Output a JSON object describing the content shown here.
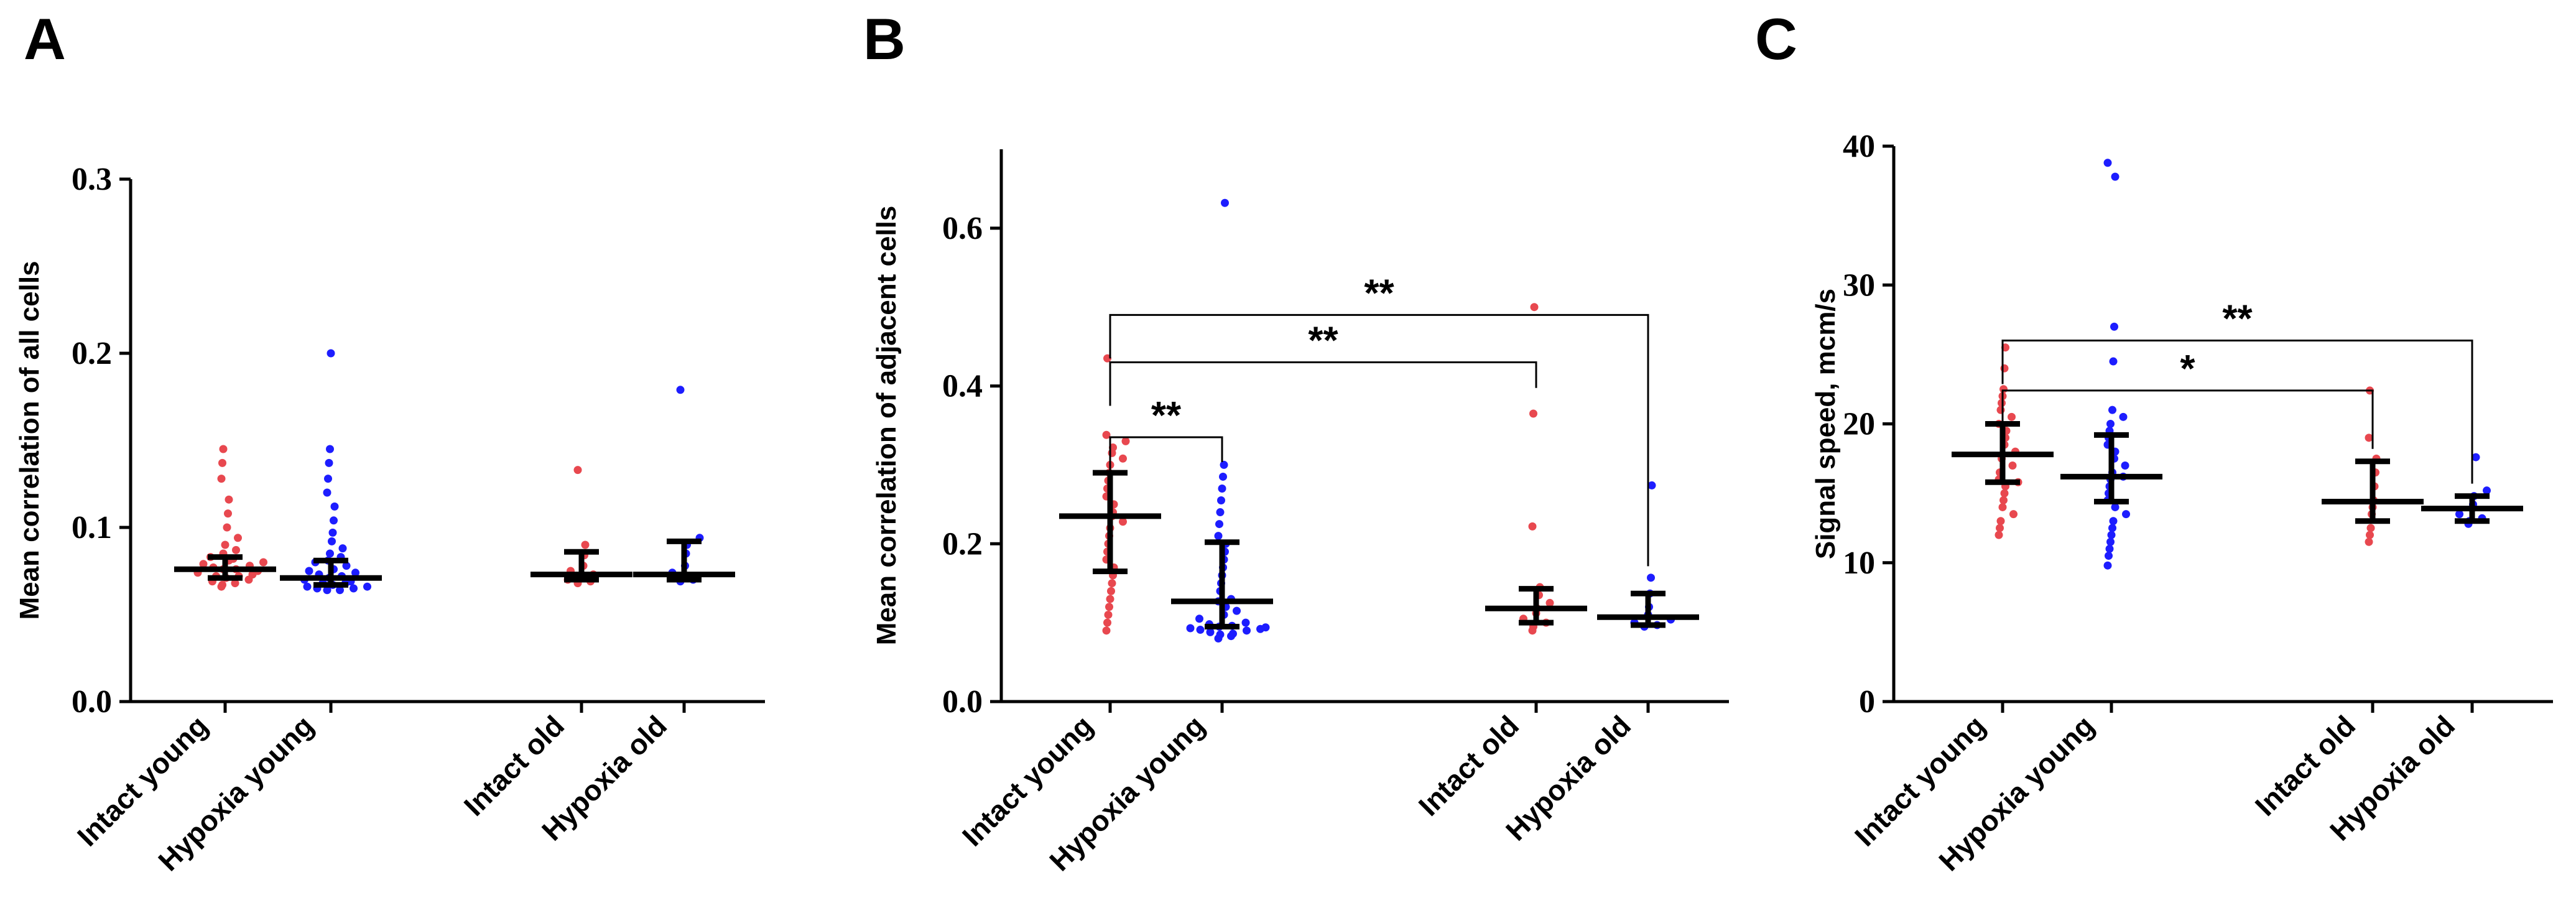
{
  "figure": {
    "colors": {
      "intact": "#e8484f",
      "hypoxia": "#1d1dff",
      "axis": "#000000"
    }
  },
  "chart_data": [
    {
      "panel": "A",
      "type": "scatter",
      "ylabel": "Mean correlation of all cells",
      "ylim": [
        0,
        0.3
      ],
      "yticks": [
        0.0,
        0.1,
        0.2,
        0.3
      ],
      "ytick_labels": [
        "0.0",
        "0.1",
        "0.2",
        "0.3"
      ],
      "categories": [
        "Intact young",
        "Hypoxia young",
        "Intact old",
        "Hypoxia old"
      ],
      "series": [
        {
          "name": "Intact young",
          "color": "intact",
          "median": 0.076,
          "q1": 0.071,
          "q3": 0.083,
          "values": [
            0.145,
            0.137,
            0.128,
            0.116,
            0.108,
            0.1,
            0.094,
            0.09,
            0.087,
            0.085,
            0.083,
            0.082,
            0.081,
            0.08,
            0.079,
            0.078,
            0.077,
            0.076,
            0.076,
            0.075,
            0.074,
            0.073,
            0.072,
            0.072,
            0.071,
            0.07,
            0.069,
            0.068,
            0.067,
            0.066
          ]
        },
        {
          "name": "Hypoxia young",
          "color": "hypoxia",
          "median": 0.071,
          "q1": 0.067,
          "q3": 0.081,
          "values": [
            0.2,
            0.145,
            0.137,
            0.128,
            0.12,
            0.112,
            0.104,
            0.097,
            0.092,
            0.088,
            0.085,
            0.083,
            0.081,
            0.08,
            0.078,
            0.076,
            0.075,
            0.074,
            0.073,
            0.072,
            0.071,
            0.07,
            0.069,
            0.068,
            0.068,
            0.067,
            0.066,
            0.066,
            0.065,
            0.065,
            0.064,
            0.064
          ]
        },
        {
          "name": "Intact old",
          "color": "intact",
          "median": 0.073,
          "q1": 0.07,
          "q3": 0.086,
          "values": [
            0.133,
            0.09,
            0.084,
            0.078,
            0.075,
            0.073,
            0.072,
            0.07,
            0.069,
            0.068
          ]
        },
        {
          "name": "Hypoxia old",
          "color": "hypoxia",
          "median": 0.073,
          "q1": 0.07,
          "q3": 0.092,
          "values": [
            0.179,
            0.094,
            0.09,
            0.085,
            0.078,
            0.074,
            0.072,
            0.071,
            0.07,
            0.069
          ]
        }
      ],
      "comparisons": []
    },
    {
      "panel": "B",
      "type": "scatter",
      "ylabel": "Mean correlation of adjacent cells",
      "ylim": [
        0,
        0.7
      ],
      "yticks": [
        0.0,
        0.2,
        0.4,
        0.6
      ],
      "ytick_labels": [
        "0.0",
        "0.2",
        "0.4",
        "0.6"
      ],
      "categories": [
        "Intact young",
        "Hypoxia young",
        "Intact old",
        "Hypoxia old"
      ],
      "series": [
        {
          "name": "Intact young",
          "color": "intact",
          "median": 0.235,
          "q1": 0.165,
          "q3": 0.29,
          "values": [
            0.435,
            0.338,
            0.33,
            0.322,
            0.315,
            0.308,
            0.3,
            0.29,
            0.28,
            0.27,
            0.26,
            0.25,
            0.24,
            0.235,
            0.228,
            0.22,
            0.21,
            0.2,
            0.19,
            0.18,
            0.17,
            0.16,
            0.15,
            0.14,
            0.13,
            0.12,
            0.11,
            0.1,
            0.09
          ]
        },
        {
          "name": "Hypoxia young",
          "color": "hypoxia",
          "median": 0.127,
          "q1": 0.095,
          "q3": 0.202,
          "values": [
            0.632,
            0.3,
            0.285,
            0.27,
            0.255,
            0.24,
            0.225,
            0.21,
            0.2,
            0.19,
            0.18,
            0.17,
            0.16,
            0.15,
            0.14,
            0.13,
            0.127,
            0.12,
            0.115,
            0.11,
            0.105,
            0.1,
            0.098,
            0.096,
            0.095,
            0.094,
            0.093,
            0.092,
            0.091,
            0.09,
            0.088,
            0.086,
            0.085,
            0.083,
            0.08
          ]
        },
        {
          "name": "Intact old",
          "color": "intact",
          "median": 0.118,
          "q1": 0.1,
          "q3": 0.143,
          "values": [
            0.5,
            0.365,
            0.222,
            0.145,
            0.135,
            0.125,
            0.118,
            0.112,
            0.105,
            0.1,
            0.095,
            0.09
          ]
        },
        {
          "name": "Hypoxia old",
          "color": "hypoxia",
          "median": 0.107,
          "q1": 0.097,
          "q3": 0.137,
          "values": [
            0.274,
            0.157,
            0.137,
            0.12,
            0.11,
            0.104,
            0.1,
            0.097,
            0.095
          ]
        }
      ],
      "comparisons": [
        {
          "from": "Intact young",
          "to": "Hypoxia young",
          "label": "**",
          "y": 0.335
        },
        {
          "from": "Intact young",
          "to": "Intact old",
          "label": "**",
          "y": 0.43
        },
        {
          "from": "Intact young",
          "to": "Hypoxia old",
          "label": "**",
          "y": 0.49
        }
      ]
    },
    {
      "panel": "C",
      "type": "scatter",
      "ylabel": "Signal  speed, mcm/s",
      "ylim": [
        0,
        40
      ],
      "yticks": [
        0,
        10,
        20,
        30,
        40
      ],
      "ytick_labels": [
        "0",
        "10",
        "20",
        "30",
        "40"
      ],
      "categories": [
        "Intact young",
        "Hypoxia young",
        "Intact old",
        "Hypoxia old"
      ],
      "series": [
        {
          "name": "Intact young",
          "color": "intact",
          "median": 17.8,
          "q1": 15.8,
          "q3": 20.0,
          "values": [
            25.5,
            24.0,
            22.5,
            22.0,
            21.5,
            21.0,
            20.5,
            20.0,
            19.5,
            19.0,
            18.5,
            18.0,
            17.8,
            17.5,
            17.0,
            16.5,
            16.0,
            15.8,
            15.5,
            15.0,
            14.5,
            14.0,
            13.5,
            13.0,
            12.5,
            12.0
          ]
        },
        {
          "name": "Hypoxia young",
          "color": "hypoxia",
          "median": 16.2,
          "q1": 14.4,
          "q3": 19.2,
          "values": [
            38.8,
            37.8,
            27.0,
            24.5,
            21.0,
            20.5,
            20.0,
            19.5,
            19.0,
            18.5,
            18.0,
            17.5,
            17.0,
            16.5,
            16.2,
            16.0,
            15.5,
            15.0,
            14.5,
            14.0,
            13.5,
            13.0,
            12.5,
            12.0,
            11.5,
            11.0,
            10.5,
            9.8
          ]
        },
        {
          "name": "Intact old",
          "color": "intact",
          "median": 14.4,
          "q1": 13.0,
          "q3": 17.3,
          "values": [
            22.4,
            19.0,
            17.5,
            16.5,
            15.5,
            14.5,
            14.0,
            13.5,
            12.5,
            12.0,
            11.5
          ]
        },
        {
          "name": "Hypoxia old",
          "color": "hypoxia",
          "median": 13.9,
          "q1": 13.0,
          "q3": 14.8,
          "values": [
            17.6,
            15.2,
            14.8,
            14.2,
            13.9,
            13.5,
            13.2,
            13.0,
            12.8
          ]
        }
      ],
      "comparisons": [
        {
          "from": "Intact young",
          "to": "Intact old",
          "label": "*",
          "y": 22.4
        },
        {
          "from": "Intact young",
          "to": "Hypoxia old",
          "label": "**",
          "y": 26.0
        }
      ]
    }
  ]
}
